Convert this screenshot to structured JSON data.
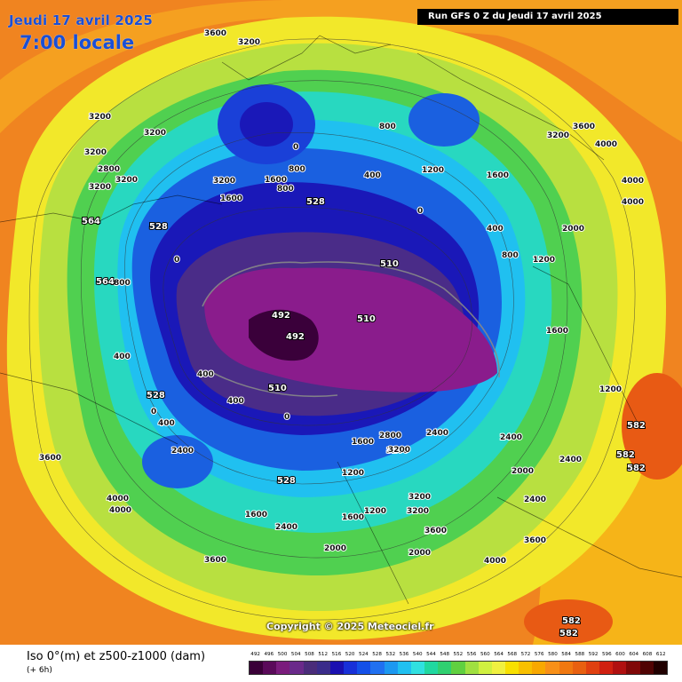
{
  "header": {
    "date": "Jeudi 17 avril 2025",
    "time": "7:00 locale",
    "run": "Run GFS 0 Z du Jeudi 17 avril 2025"
  },
  "copyright": "Copyright © 2025 Meteociel.fr",
  "footer": {
    "title": "Iso 0°(m) et z500-z1000 (dam)",
    "subtitle": "(+ 6h)"
  },
  "legend": {
    "ticks": [
      "492",
      "496",
      "500",
      "504",
      "508",
      "512",
      "516",
      "520",
      "524",
      "528",
      "532",
      "536",
      "540",
      "544",
      "548",
      "552",
      "556",
      "560",
      "564",
      "568",
      "572",
      "576",
      "580",
      "584",
      "588",
      "592",
      "596",
      "600",
      "604",
      "608",
      "612"
    ],
    "colors": [
      "#3a0038",
      "#5a0a5a",
      "#7a1c7c",
      "#6a2a8a",
      "#4a2c7a",
      "#3a2c8a",
      "#1a10b0",
      "#1830d8",
      "#1450e8",
      "#2070f0",
      "#1c98f0",
      "#20c0f0",
      "#30e0e0",
      "#20d8a0",
      "#30d070",
      "#60d040",
      "#a0e040",
      "#d0f040",
      "#f0f040",
      "#f8e000",
      "#f8c000",
      "#f8a800",
      "#f89018",
      "#f07810",
      "#e86010",
      "#e04010",
      "#d02010",
      "#b01010",
      "#800808",
      "#500404",
      "#200000"
    ]
  },
  "map_labels": {
    "iso": [
      "3200",
      "3200",
      "3200",
      "3600",
      "3200",
      "3200",
      "2800",
      "3200",
      "3200",
      "1600",
      "4000",
      "3600",
      "4000",
      "3200",
      "3600",
      "1600",
      "1200",
      "1600",
      "800",
      "400",
      "0",
      "400",
      "800",
      "1200",
      "1600",
      "2000",
      "2000",
      "2400",
      "2400",
      "2800",
      "3200",
      "2400",
      "2000",
      "1600",
      "1200",
      "2000",
      "2400",
      "3200",
      "3200",
      "3600",
      "4000",
      "4000",
      "3600",
      "3600",
      "4000",
      "3600",
      "2400",
      "1600",
      "1200",
      "2400",
      "3200",
      "4000",
      "800",
      "400",
      "0",
      "0",
      "0",
      "0",
      "400",
      "400",
      "800",
      "1200",
      "400",
      "1600",
      "800"
    ],
    "geo": [
      "492",
      "492",
      "510",
      "510",
      "510",
      "528",
      "528",
      "528",
      "528",
      "564",
      "564",
      "582",
      "582",
      "582",
      "582",
      "582"
    ]
  }
}
